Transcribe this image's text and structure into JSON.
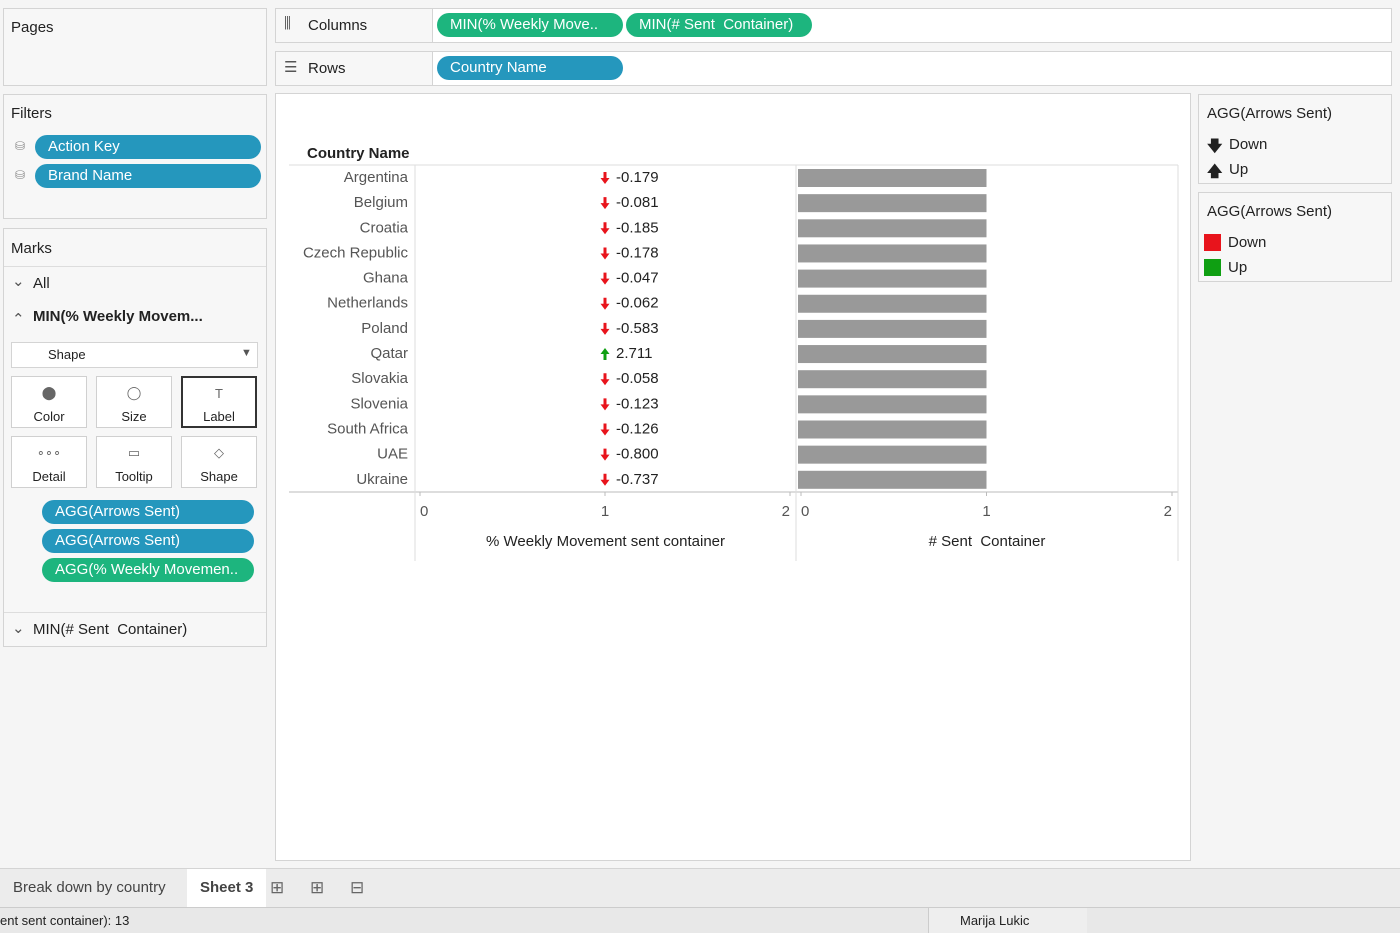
{
  "pages": {
    "title": "Pages"
  },
  "shelves": {
    "columns": {
      "label": "Columns",
      "pills": [
        "MIN(% Weekly Move..",
        "MIN(# Sent  Container)"
      ]
    },
    "rows": {
      "label": "Rows",
      "pills": [
        "Country Name"
      ]
    }
  },
  "filters": {
    "title": "Filters",
    "pills": [
      "Action Key",
      "Brand Name"
    ]
  },
  "marks": {
    "title": "Marks",
    "all": "All",
    "section": "MIN(% Weekly Movem...",
    "mark_type": "Shape",
    "buttons": [
      "Color",
      "Size",
      "Label",
      "Detail",
      "Tooltip",
      "Shape"
    ],
    "pills": [
      "AGG(Arrows Sent)",
      "AGG(Arrows Sent)",
      "AGG(% Weekly Movemen.."
    ],
    "section2": "MIN(# Sent  Container)"
  },
  "legends": [
    {
      "title": "AGG(Arrows Sent)",
      "items": [
        "Down",
        "Up"
      ]
    },
    {
      "title": "AGG(Arrows Sent)",
      "items": [
        {
          "label": "Down",
          "color": "#e8141c"
        },
        {
          "label": "Up",
          "color": "#0f9f12"
        }
      ]
    }
  ],
  "chart_data": [
    {
      "type": "shape",
      "row_header": "Country Name",
      "categories": [
        "Argentina",
        "Belgium",
        "Croatia",
        "Czech Republic",
        "Ghana",
        "Netherlands",
        "Poland",
        "Qatar",
        "Slovakia",
        "Slovenia",
        "South Africa",
        "UAE",
        "Ukraine"
      ],
      "values": [
        1,
        1,
        1,
        1,
        1,
        1,
        1,
        1,
        1,
        1,
        1,
        1,
        1
      ],
      "mark_labels": [
        "-0.179",
        "-0.081",
        "-0.185",
        "-0.178",
        "-0.047",
        "-0.062",
        "-0.583",
        "2.711",
        "-0.058",
        "-0.123",
        "-0.126",
        "-0.800",
        "-0.737"
      ],
      "x_label": "% Weekly Movement sent container",
      "xlim": [
        0,
        2
      ],
      "xticks": [
        0,
        1,
        2
      ]
    },
    {
      "type": "bar",
      "values": [
        1,
        1,
        1,
        1,
        1,
        1,
        1,
        1,
        1,
        1,
        1,
        1,
        1
      ],
      "color": "#999999",
      "x_label": "# Sent  Container",
      "xlim": [
        0,
        2
      ],
      "xticks": [
        0,
        1,
        2
      ]
    }
  ],
  "tabs": [
    "Break down by country",
    "Sheet 3"
  ],
  "status": {
    "text": "ent sent container): 13",
    "user": "Marija Lukic"
  }
}
